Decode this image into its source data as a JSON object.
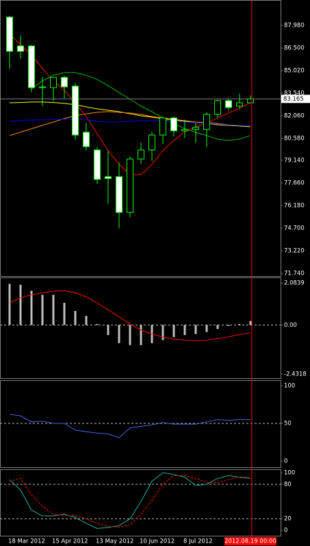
{
  "chart_data": [
    {
      "type": "candlestick",
      "categories": [
        "18 Mar 2012",
        null,
        null,
        null,
        "15 Apr 2012",
        null,
        null,
        null,
        "13 May 2012",
        null,
        null,
        null,
        "10 Jun 2012",
        null,
        null,
        null,
        "8 Jul 2012",
        null,
        null,
        null,
        null,
        null,
        "2012.08.19 00:00"
      ],
      "open": [
        88.52,
        86.63,
        86.63,
        83.9,
        83.9,
        84.57,
        84.0,
        80.98,
        79.82,
        78.07,
        78.07,
        75.73,
        79.23,
        79.82,
        80.8,
        81.92,
        81.07,
        81.16,
        81.16,
        82.15,
        83.05,
        82.69,
        82.91
      ],
      "high": [
        88.6,
        87.3,
        86.7,
        84.6,
        84.6,
        84.7,
        84.2,
        81.6,
        80.0,
        79.8,
        79.0,
        79.4,
        80.3,
        81.0,
        82.0,
        82.0,
        81.8,
        81.6,
        82.3,
        83.1,
        83.2,
        83.5,
        83.4
      ],
      "low": [
        85.15,
        85.8,
        83.6,
        82.7,
        83.0,
        83.2,
        80.5,
        79.8,
        77.6,
        76.3,
        74.7,
        75.4,
        78.9,
        79.1,
        80.2,
        80.7,
        80.6,
        80.3,
        80.0,
        81.9,
        82.4,
        82.5,
        82.9
      ],
      "close": [
        86.28,
        86.28,
        83.9,
        83.95,
        84.57,
        83.95,
        80.8,
        80.04,
        77.89,
        77.95,
        75.73,
        79.23,
        79.82,
        80.8,
        81.92,
        81.07,
        81.16,
        81.3,
        82.15,
        83.05,
        82.6,
        82.91,
        83.165
      ],
      "bull_color": "#000000",
      "bear_color": "#ffffff",
      "candle_edge_color": "#00ff00",
      "series": [
        {
          "color": "#ff0000",
          "values": [
            87.4,
            86.72,
            86.05,
            85.15,
            84.35,
            83.72,
            82.91,
            82.01,
            80.89,
            79.77,
            78.87,
            78.2,
            78.2,
            78.87,
            79.77,
            80.44,
            81.02,
            81.34,
            81.56,
            81.92,
            82.24,
            82.55,
            82.91
          ]
        },
        {
          "color": "#00c000",
          "values": [
            null,
            null,
            83.81,
            84.35,
            84.71,
            84.89,
            84.89,
            84.71,
            84.44,
            84.03,
            83.58,
            83.14,
            82.69,
            82.33,
            81.92,
            81.56,
            81.21,
            80.98,
            80.76,
            80.53,
            80.44,
            80.53,
            80.76
          ]
        },
        {
          "color": "#ffff00",
          "values": [
            82.91,
            82.93,
            82.96,
            82.96,
            82.93,
            82.87,
            82.78,
            82.64,
            82.51,
            82.42,
            82.33,
            82.19,
            82.06,
            81.97,
            81.88,
            81.79,
            81.7,
            81.61,
            81.56,
            81.47,
            81.43,
            81.39,
            81.34
          ]
        },
        {
          "color": "#ff8c00",
          "values": [
            80.76,
            80.98,
            81.21,
            81.43,
            81.65,
            81.88,
            82.06,
            82.19,
            82.28,
            82.33,
            82.28,
            82.24,
            82.15,
            82.01,
            81.92,
            81.83,
            81.74,
            81.65,
            81.61,
            81.56,
            81.47,
            81.43,
            81.39
          ]
        },
        {
          "color": "#0000ff",
          "values": [
            81.7,
            81.74,
            81.79,
            81.79,
            81.83,
            81.83,
            81.83,
            81.79,
            81.7,
            81.65,
            81.65,
            81.7,
            81.74,
            81.74,
            81.74,
            81.7,
            81.65,
            81.61,
            81.56,
            81.52,
            81.47,
            81.43,
            81.39
          ]
        }
      ],
      "last_price": 83.165,
      "last_price_color": "#808080",
      "ylim": [
        71.56,
        89.64
      ],
      "yticks": [
        {
          "value": 87.98,
          "label": "87.980"
        },
        {
          "value": 86.5,
          "label": "86.500"
        },
        {
          "value": 85.02,
          "label": "85.020"
        },
        {
          "value": 83.54,
          "label": "83.540"
        },
        {
          "value": 82.06,
          "label": "82.060"
        },
        {
          "value": 80.58,
          "label": "80.580"
        },
        {
          "value": 79.14,
          "label": "79.140"
        },
        {
          "value": 77.66,
          "label": "77.660"
        },
        {
          "value": 76.18,
          "label": "76.180"
        },
        {
          "value": 74.7,
          "label": "74.700"
        },
        {
          "value": 73.22,
          "label": "73.220"
        },
        {
          "value": 71.74,
          "label": "71.740"
        }
      ],
      "grid": false
    },
    {
      "type": "bar",
      "color": "#c0c0c0",
      "values": [
        2.04,
        2.0,
        1.7,
        1.5,
        1.5,
        1.1,
        0.7,
        0.45,
        0.05,
        -0.5,
        -0.9,
        -1.0,
        -1.0,
        -0.9,
        -0.75,
        -0.6,
        -0.5,
        -0.45,
        -0.35,
        -0.2,
        -0.05,
        0.05,
        0.2
      ],
      "series": [
        {
          "color": "#ff0000",
          "values": [
            1.1,
            1.35,
            1.5,
            1.6,
            1.68,
            1.7,
            1.6,
            1.4,
            1.1,
            0.75,
            0.4,
            0.05,
            -0.25,
            -0.45,
            -0.6,
            -0.7,
            -0.75,
            -0.78,
            -0.75,
            -0.68,
            -0.58,
            -0.48,
            -0.38
          ]
        }
      ],
      "ylim": [
        -2.64,
        2.36
      ],
      "yticks": [
        2.0839,
        {
          "value": 0,
          "label": "0.00"
        },
        -2.4318
      ],
      "grid": true
    },
    {
      "type": "line",
      "series": [
        {
          "color": "#4169e1",
          "values": [
            62,
            60,
            52,
            53,
            50,
            50,
            41,
            39,
            37,
            36,
            31,
            44,
            46,
            48,
            51,
            49,
            49,
            49,
            52,
            55,
            54,
            55,
            55
          ]
        }
      ],
      "ylim": [
        -8.2,
        107.3
      ],
      "yticks": [
        100,
        50,
        0
      ],
      "grid": true
    },
    {
      "type": "line",
      "series": [
        {
          "color": "#20b2aa",
          "values": [
            88,
            70,
            35,
            25,
            25,
            28,
            22,
            12,
            3,
            5,
            8,
            20,
            50,
            85,
            100,
            97,
            92,
            78,
            80,
            90,
            95,
            92,
            90
          ]
        },
        {
          "color": "#ff0000",
          "dashed": true,
          "values": [
            85,
            90,
            62,
            42,
            28,
            26,
            25,
            20,
            12,
            7,
            5,
            10,
            28,
            52,
            80,
            95,
            95,
            90,
            83,
            83,
            88,
            93,
            92
          ]
        }
      ],
      "ylim": [
        -9.5,
        106
      ],
      "yticks": [
        100,
        80,
        20,
        0
      ],
      "grid": true
    }
  ]
}
